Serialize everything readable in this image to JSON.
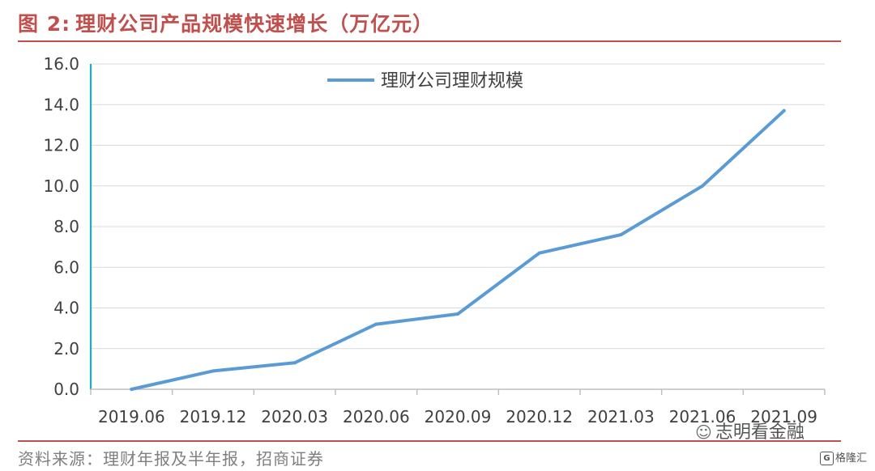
{
  "header": {
    "figure_label": "图 2:",
    "title": "理财公司产品规模快速增长（万亿元）"
  },
  "footer": {
    "source": "资料来源：理财年报及半年报，招商证券"
  },
  "watermark": {
    "icon": "wechat-icon",
    "text": "志明看金融"
  },
  "brand": {
    "icon": "gelonghui-logo-icon",
    "text": "格隆汇"
  },
  "colors": {
    "accent": "#C0504D",
    "series": "#5B9BD5",
    "grid": "#D9D9D9",
    "y_axis": "#00B0F0"
  },
  "chart_data": {
    "type": "line",
    "categories": [
      "2019.06",
      "2019.12",
      "2020.03",
      "2020.06",
      "2020.09",
      "2020.12",
      "2021.03",
      "2021.06",
      "2021.09"
    ],
    "y_tick_labels": [
      "0.0",
      "2.0",
      "4.0",
      "6.0",
      "8.0",
      "10.0",
      "12.0",
      "14.0",
      "16.0"
    ],
    "ylim": [
      0,
      16
    ],
    "series": [
      {
        "name": "理财公司理财规模",
        "values": [
          0.0,
          0.9,
          1.3,
          3.2,
          3.7,
          6.7,
          7.6,
          10.0,
          13.7
        ]
      }
    ],
    "legend_position": "top-center",
    "grid": true
  }
}
